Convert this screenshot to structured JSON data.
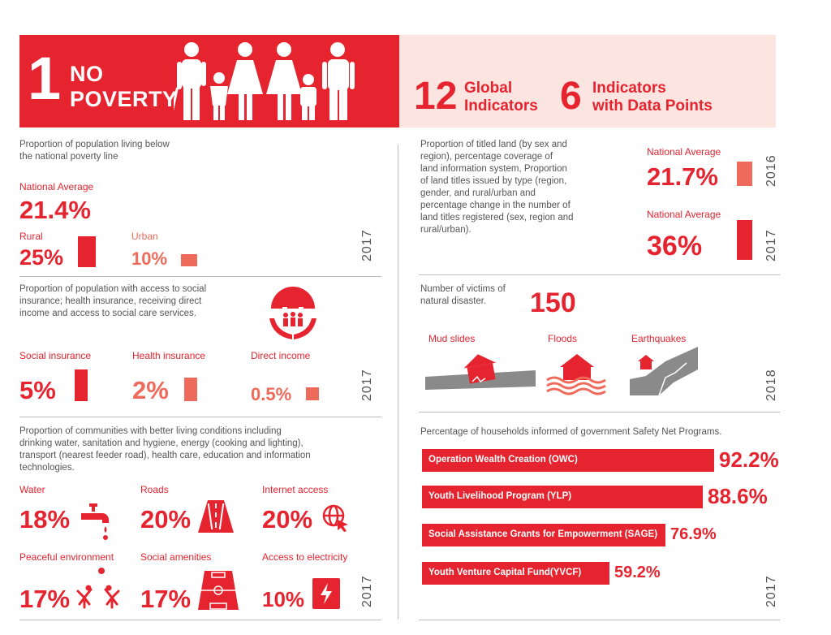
{
  "header": {
    "goal_number": "1",
    "goal_line1": "NO",
    "goal_line2": "POVERTY",
    "global_count": "12",
    "global_line1": "Global",
    "global_line2": "Indicators",
    "data_count": "6",
    "data_line1": "Indicators",
    "data_line2": "with Data Points"
  },
  "poverty": {
    "desc_line1": "Proportion of population living below",
    "desc_line2": "the national poverty line",
    "national_label": "National Average",
    "national_value": "21.4%",
    "rural_label": "Rural",
    "rural_value": "25%",
    "urban_label": "Urban",
    "urban_value": "10%",
    "year": "2017"
  },
  "land": {
    "desc_lines": [
      "Proportion of titled land (by sex and",
      "region), percentage coverage of",
      "land information system, Proportion",
      "of land titles issued by type (region,",
      "gender, and rural/urban and",
      "percentage change in the number of",
      "land titles registered (sex, region and",
      "rural/urban)."
    ],
    "avg1_label": "National Average",
    "avg1_value": "21.7%",
    "year1": "2016",
    "avg2_label": "National Average",
    "avg2_value": "36%",
    "year2": "2017"
  },
  "social": {
    "desc_line1": "Proportion of population with access to social",
    "desc_line2": "insurance; health insurance, receiving direct",
    "desc_line3": "income and access to social care services.",
    "insurance_label": "Social insurance",
    "insurance_value": "5%",
    "health_label": "Health insurance",
    "health_value": "2%",
    "direct_label": "Direct income",
    "direct_value": "0.5%",
    "year": "2017"
  },
  "disaster": {
    "desc_line1": "Number of victims of",
    "desc_line2": "natural disaster.",
    "value": "150",
    "mud_label": "Mud slides",
    "floods_label": "Floods",
    "quake_label": "Earthquakes",
    "year": "2018"
  },
  "communities": {
    "desc_lines": [
      "Proportion of communities with better living conditions including",
      "drinking water, sanitation and hygiene, energy (cooking and lighting),",
      "transport (nearest feeder road), health care, education and information",
      "technologies."
    ],
    "water_label": "Water",
    "water_value": "18%",
    "roads_label": "Roads",
    "roads_value": "20%",
    "internet_label": "Internet access",
    "internet_value": "20%",
    "peace_label": "Peaceful environment",
    "peace_value": "17%",
    "amenities_label": "Social amenities",
    "amenities_value": "17%",
    "electricity_label": "Access to  electricity",
    "electricity_value": "10%",
    "year": "2017"
  },
  "safety_net": {
    "title": "Percentage of households informed of government Safety Net Programs.",
    "year": "2017",
    "programs": [
      {
        "name": "Operation Wealth Creation (OWC)",
        "value": 92.2,
        "label": "92.2%"
      },
      {
        "name": "Youth Livelihood Program (YLP)",
        "value": 88.6,
        "label": "88.6%"
      },
      {
        "name": "Social Assistance Grants for Empowerment (SAGE)",
        "value": 76.9,
        "label": "76.9%"
      },
      {
        "name": "Youth Venture Capital Fund(YVCF)",
        "value": 59.2,
        "label": "59.2%"
      }
    ]
  },
  "colors": {
    "primary": "#e5242f",
    "secondary": "#ee6a5a",
    "header_right_bg": "#fce5e0",
    "icon_gray": "#8a8a8a"
  }
}
